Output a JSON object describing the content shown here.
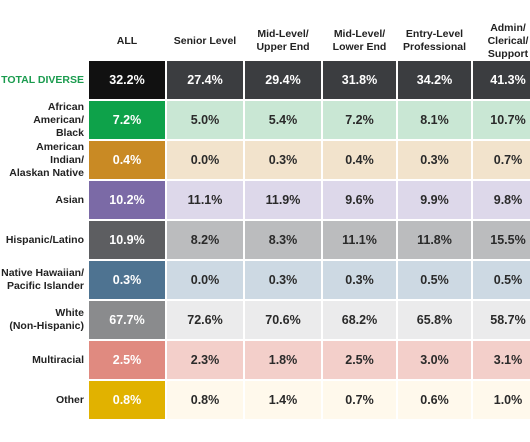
{
  "chart_data": {
    "type": "table",
    "columns": [
      {
        "label": "ALL"
      },
      {
        "label": "Senior Level"
      },
      {
        "label": "Mid-Level/\nUpper End"
      },
      {
        "label": "Mid-Level/\nLower End"
      },
      {
        "label": "Entry-Level\nProfessional"
      },
      {
        "label": "Admin/\nClerical/\nSupport"
      }
    ],
    "rows": [
      {
        "label": "TOTAL DIVERSE",
        "values": [
          "32.2%",
          "27.4%",
          "29.4%",
          "31.8%",
          "34.2%",
          "41.3%"
        ],
        "all_color": "#111111",
        "tint": "#3b3d40"
      },
      {
        "label": "African American/\nBlack",
        "values": [
          "7.2%",
          "5.0%",
          "5.4%",
          "7.2%",
          "8.1%",
          "10.7%"
        ],
        "all_color": "#0ea24a",
        "tint": "#c9e7d4"
      },
      {
        "label": "American Indian/\nAlaskan Native",
        "values": [
          "0.4%",
          "0.0%",
          "0.3%",
          "0.4%",
          "0.3%",
          "0.7%"
        ],
        "all_color": "#c98a24",
        "tint": "#f2e3cc"
      },
      {
        "label": "Asian",
        "values": [
          "10.2%",
          "11.1%",
          "11.9%",
          "9.6%",
          "9.9%",
          "9.8%"
        ],
        "all_color": "#7b6aa6",
        "tint": "#ddd8ea"
      },
      {
        "label": "Hispanic/Latino",
        "values": [
          "10.9%",
          "8.2%",
          "8.3%",
          "11.1%",
          "11.8%",
          "15.5%"
        ],
        "all_color": "#5d5e61",
        "tint": "#bbbcbe"
      },
      {
        "label": "Native Hawaiian/\nPacific Islander",
        "values": [
          "0.3%",
          "0.0%",
          "0.3%",
          "0.3%",
          "0.5%",
          "0.5%"
        ],
        "all_color": "#4e7391",
        "tint": "#cdd9e3"
      },
      {
        "label": "White\n(Non-Hispanic)",
        "values": [
          "67.7%",
          "72.6%",
          "70.6%",
          "68.2%",
          "65.8%",
          "58.7%"
        ],
        "all_color": "#8a8b8d",
        "tint": "#ebebec"
      },
      {
        "label": "Multiracial",
        "values": [
          "2.5%",
          "2.3%",
          "1.8%",
          "2.5%",
          "3.0%",
          "3.1%"
        ],
        "all_color": "#e08a80",
        "tint": "#f3cfca"
      },
      {
        "label": "Other",
        "values": [
          "0.8%",
          "0.8%",
          "1.4%",
          "0.7%",
          "0.6%",
          "1.0%"
        ],
        "all_color": "#e1b200",
        "tint": "#fff9ec"
      }
    ]
  }
}
